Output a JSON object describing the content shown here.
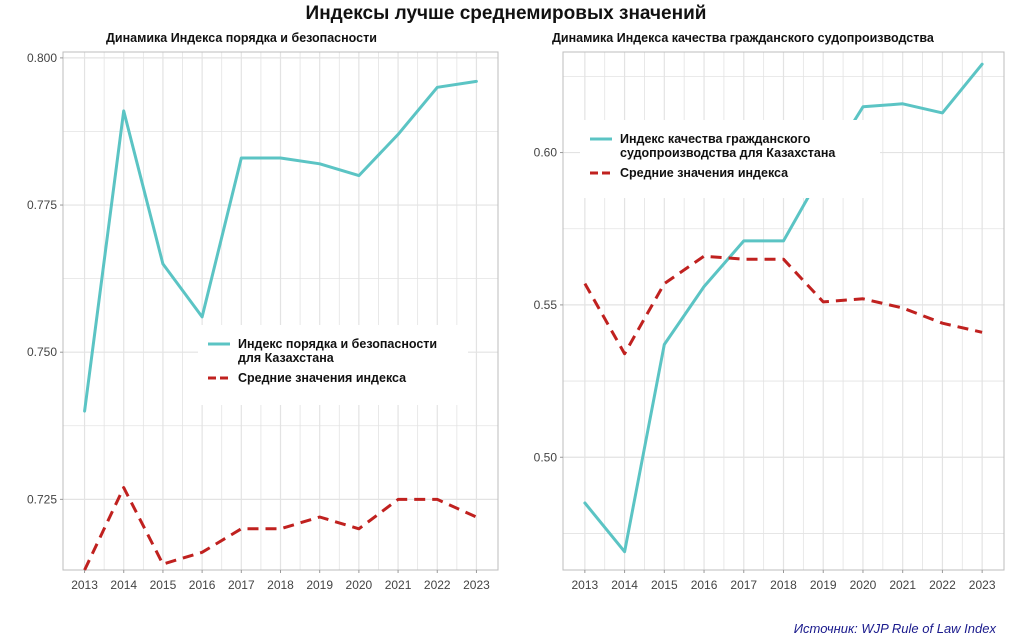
{
  "title": "Индексы лучше среднемировых значений",
  "source": "Источник: WJP Rule of Law Index",
  "colors": {
    "kz": "#5bc4c4",
    "avg": "#c0211f",
    "grid": "#e3e3e3"
  },
  "chart_data": [
    {
      "type": "line",
      "title": "Динамика Индекса порядка и безопасности",
      "xlabel": "",
      "ylabel": "",
      "categories": [
        "2013",
        "2014",
        "2015",
        "2016",
        "2017",
        "2018",
        "2019",
        "2020",
        "2021",
        "2022",
        "2023"
      ],
      "ylim": [
        0.713,
        0.801
      ],
      "yticks": [
        0.725,
        0.75,
        0.775,
        0.8
      ],
      "ytick_labels": [
        "0.725",
        "0.750",
        "0.775",
        "0.800"
      ],
      "legend_position": "center-right",
      "series": [
        {
          "name": "Индекс порядка и безопасности для Казахстана",
          "name_lines": [
            "Индекс порядка и безопасности",
            "для Казахстана"
          ],
          "style": "solid",
          "values": [
            0.74,
            0.791,
            0.765,
            0.756,
            0.783,
            0.783,
            0.782,
            0.78,
            0.787,
            0.795,
            0.796
          ]
        },
        {
          "name": "Средние значения индекса",
          "name_lines": [
            "Средние значения индекса"
          ],
          "style": "dashed",
          "values": [
            0.713,
            0.727,
            0.714,
            0.716,
            0.72,
            0.72,
            0.722,
            0.72,
            0.725,
            0.725,
            0.722
          ]
        }
      ]
    },
    {
      "type": "line",
      "title": "Динамика Индекса качества гражданского судопроизводства",
      "xlabel": "",
      "ylabel": "",
      "categories": [
        "2013",
        "2014",
        "2015",
        "2016",
        "2017",
        "2018",
        "2019",
        "2020",
        "2021",
        "2022",
        "2023"
      ],
      "ylim": [
        0.463,
        0.633
      ],
      "yticks": [
        0.5,
        0.55,
        0.6
      ],
      "ytick_labels": [
        "0.50",
        "0.55",
        "0.60"
      ],
      "legend_position": "top-left",
      "series": [
        {
          "name": "Индекс качества гражданского судопроизводства для Казахстана",
          "name_lines": [
            "Индекс качества гражданского",
            "судопроизводства для Казахстана"
          ],
          "style": "solid",
          "values": [
            0.485,
            0.469,
            0.537,
            0.556,
            0.571,
            0.571,
            0.594,
            0.615,
            0.616,
            0.613,
            0.629
          ]
        },
        {
          "name": "Средние значения индекса",
          "name_lines": [
            "Средние значения индекса"
          ],
          "style": "dashed",
          "values": [
            0.557,
            0.534,
            0.557,
            0.566,
            0.565,
            0.565,
            0.551,
            0.552,
            0.549,
            0.544,
            0.541
          ]
        }
      ]
    }
  ]
}
